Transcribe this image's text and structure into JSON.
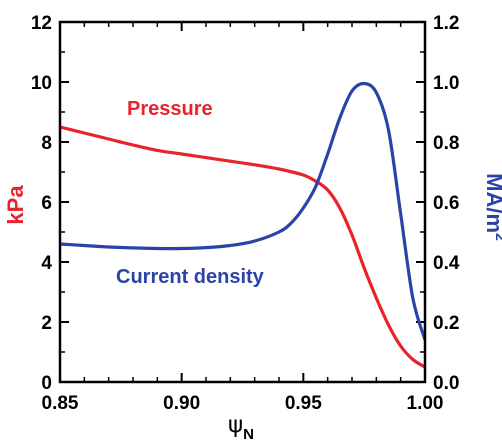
{
  "colors": {
    "pressure": "#e8232a",
    "current": "#2b43a8",
    "axis": "#000000"
  },
  "chart_data": {
    "type": "line",
    "title": "",
    "xlabel": "ψ",
    "xlabel_sub": "N",
    "ylabel_left": "kPa",
    "ylabel_right": "MA/m",
    "ylabel_right_sup": "2",
    "xlim": [
      0.85,
      1.0
    ],
    "ylim_left": [
      0,
      12
    ],
    "ylim_right": [
      0,
      1.2
    ],
    "x_ticks": [
      0.85,
      0.9,
      0.95,
      1.0
    ],
    "x_tick_labels": [
      "0.85",
      "0.90",
      "0.95",
      "1.00"
    ],
    "y_left_ticks": [
      0,
      2,
      4,
      6,
      8,
      10,
      12
    ],
    "y_left_tick_labels": [
      "0",
      "2",
      "4",
      "6",
      "8",
      "10",
      "12"
    ],
    "y_right_ticks": [
      0,
      0.2,
      0.4,
      0.6,
      0.8,
      1.0,
      1.2
    ],
    "y_right_tick_labels": [
      "0.0",
      "0.2",
      "0.4",
      "0.6",
      "0.8",
      "1.0",
      "1.2"
    ],
    "series": [
      {
        "name": "Pressure",
        "axis": "left",
        "color": "#e8232a",
        "x": [
          0.85,
          0.86,
          0.87,
          0.88,
          0.89,
          0.9,
          0.91,
          0.92,
          0.93,
          0.94,
          0.95,
          0.955,
          0.96,
          0.965,
          0.97,
          0.975,
          0.98,
          0.985,
          0.99,
          0.995,
          1.0
        ],
        "y": [
          8.5,
          8.3,
          8.1,
          7.9,
          7.72,
          7.6,
          7.48,
          7.36,
          7.24,
          7.1,
          6.9,
          6.7,
          6.4,
          5.8,
          4.9,
          3.8,
          2.8,
          1.9,
          1.2,
          0.75,
          0.5
        ]
      },
      {
        "name": "Current density",
        "axis": "right",
        "color": "#2b43a8",
        "x": [
          0.85,
          0.86,
          0.87,
          0.88,
          0.89,
          0.9,
          0.91,
          0.92,
          0.93,
          0.94,
          0.945,
          0.95,
          0.955,
          0.96,
          0.965,
          0.97,
          0.975,
          0.98,
          0.985,
          0.99,
          0.995,
          1.0
        ],
        "y": [
          0.46,
          0.455,
          0.45,
          0.447,
          0.445,
          0.445,
          0.448,
          0.455,
          0.47,
          0.5,
          0.53,
          0.58,
          0.65,
          0.76,
          0.88,
          0.97,
          0.995,
          0.965,
          0.84,
          0.56,
          0.28,
          0.14
        ]
      }
    ]
  }
}
